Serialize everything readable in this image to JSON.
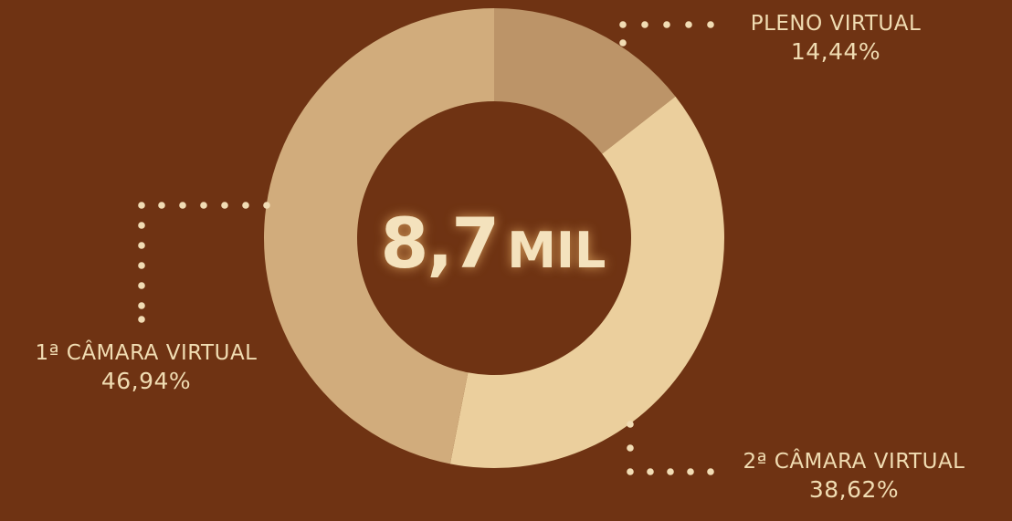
{
  "center": {
    "value": "8,7",
    "unit": "MIL"
  },
  "chart_data": {
    "type": "pie",
    "variant": "donut",
    "categories": [
      "PLENO VIRTUAL",
      "2ª CÂMARA VIRTUAL",
      "1ª CÂMARA VIRTUAL"
    ],
    "values": [
      14.44,
      38.62,
      46.94
    ],
    "value_labels": [
      "14,44%",
      "38,62%",
      "46,94%"
    ],
    "colors": [
      "#bc9468",
      "#ebcf9d",
      "#d1ac7c"
    ],
    "background": "#6f3313",
    "label_color": "#f0dcb2",
    "leader_color": "#f1dcb4"
  },
  "labels": {
    "pleno": {
      "name": "PLENO VIRTUAL",
      "pct": "14,44%"
    },
    "camara1": {
      "name": "1ª CÂMARA VIRTUAL",
      "pct": "46,94%"
    },
    "camara2": {
      "name": "2ª CÂMARA VIRTUAL",
      "pct": "38,62%"
    }
  }
}
